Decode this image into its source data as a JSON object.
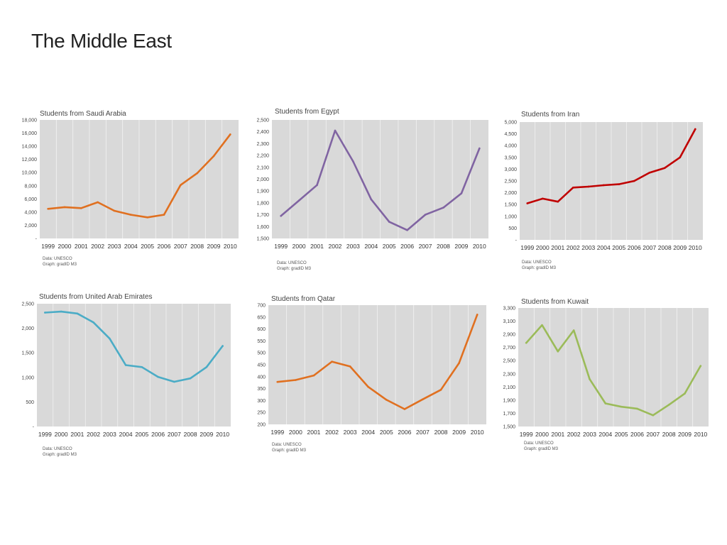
{
  "page": {
    "title": "The Middle East"
  },
  "chart_data": [
    {
      "id": "saudi",
      "type": "line",
      "title": "Students from Saudi Arabia",
      "color": "#E07020",
      "categories": [
        "1999",
        "2000",
        "2001",
        "2002",
        "2003",
        "2004",
        "2005",
        "2006",
        "2007",
        "2008",
        "2009",
        "2010"
      ],
      "values": [
        4500,
        4750,
        4600,
        5500,
        4200,
        3600,
        3200,
        3600,
        8100,
        9900,
        12500,
        15800
      ],
      "ylim": [
        0,
        18000
      ],
      "yticks": [
        0,
        2000,
        4000,
        6000,
        8000,
        10000,
        12000,
        14000,
        16000,
        18000
      ],
      "ytick_labels": [
        "-",
        "2,000",
        "4,000",
        "6,000",
        "8,000",
        "10,000",
        "12,000",
        "14,000",
        "16,000",
        "18,000"
      ],
      "source": "Data: UNESCO",
      "graph_credit": "Graph: gradID M3"
    },
    {
      "id": "egypt",
      "type": "line",
      "title": "Students from Egypt",
      "color": "#8064A2",
      "categories": [
        "1999",
        "2000",
        "2001",
        "2002",
        "2003",
        "2004",
        "2005",
        "2006",
        "2007",
        "2008",
        "2009",
        "2010"
      ],
      "values": [
        1690,
        1820,
        1950,
        2410,
        2150,
        1830,
        1640,
        1570,
        1700,
        1760,
        1880,
        2260
      ],
      "ylim": [
        1500,
        2500
      ],
      "yticks": [
        1500,
        1600,
        1700,
        1800,
        1900,
        2000,
        2100,
        2200,
        2300,
        2400,
        2500
      ],
      "ytick_labels": [
        "1,500",
        "1,600",
        "1,700",
        "1,800",
        "1,900",
        "2,000",
        "2,100",
        "2,200",
        "2,300",
        "2,400",
        "2,500"
      ],
      "source": "Data: UNESCO",
      "graph_credit": "Graph: gradID M3"
    },
    {
      "id": "iran",
      "type": "line",
      "title": "Students from Iran",
      "color": "#C00000",
      "categories": [
        "1999",
        "2000",
        "2001",
        "2002",
        "2003",
        "2004",
        "2005",
        "2006",
        "2007",
        "2008",
        "2009",
        "2010"
      ],
      "values": [
        1550,
        1750,
        1620,
        2220,
        2260,
        2320,
        2360,
        2500,
        2850,
        3050,
        3500,
        4700
      ],
      "ylim": [
        0,
        5000
      ],
      "yticks": [
        0,
        500,
        1000,
        1500,
        2000,
        2500,
        3000,
        3500,
        4000,
        4500,
        5000
      ],
      "ytick_labels": [
        "-",
        "500",
        "1,000",
        "1,500",
        "2,000",
        "2,500",
        "3,000",
        "3,500",
        "4,000",
        "4,500",
        "5,000"
      ],
      "source": "Data: UNESCO",
      "graph_credit": "Graph: gradID M3"
    },
    {
      "id": "uae",
      "type": "line",
      "title": "Students from United Arab Emirates",
      "color": "#4BACC6",
      "categories": [
        "1999",
        "2000",
        "2001",
        "2002",
        "2003",
        "2004",
        "2005",
        "2006",
        "2007",
        "2008",
        "2009",
        "2010"
      ],
      "values": [
        2320,
        2340,
        2300,
        2120,
        1790,
        1250,
        1210,
        1010,
        910,
        980,
        1210,
        1640
      ],
      "ylim": [
        0,
        2500
      ],
      "yticks": [
        0,
        500,
        1000,
        1500,
        2000,
        2500
      ],
      "ytick_labels": [
        "-",
        "500",
        "1,000",
        "1,500",
        "2,000",
        "2,500"
      ],
      "source": "Data: UNESCO",
      "graph_credit": "Graph: gradID M3"
    },
    {
      "id": "qatar",
      "type": "line",
      "title": "Students from Qatar",
      "color": "#E07020",
      "categories": [
        "1999",
        "2000",
        "2001",
        "2002",
        "2003",
        "2004",
        "2005",
        "2006",
        "2007",
        "2008",
        "2009",
        "2010"
      ],
      "values": [
        378,
        386,
        405,
        463,
        443,
        357,
        303,
        264,
        305,
        345,
        457,
        660
      ],
      "ylim": [
        200,
        700
      ],
      "yticks": [
        200,
        250,
        300,
        350,
        400,
        450,
        500,
        550,
        600,
        650,
        700
      ],
      "ytick_labels": [
        "200",
        "250",
        "300",
        "350",
        "400",
        "450",
        "500",
        "550",
        "600",
        "650",
        "700"
      ],
      "source": "Data: UNESCO",
      "graph_credit": "Graph: gradID M3"
    },
    {
      "id": "kuwait",
      "type": "line",
      "title": "Students from Kuwait",
      "color": "#9BBB59",
      "categories": [
        "1999",
        "2000",
        "2001",
        "2002",
        "2003",
        "2004",
        "2005",
        "2006",
        "2007",
        "2008",
        "2009",
        "2010"
      ],
      "values": [
        2770,
        3040,
        2640,
        2960,
        2220,
        1850,
        1800,
        1770,
        1670,
        1830,
        2000,
        2420
      ],
      "ylim": [
        1500,
        3300
      ],
      "yticks": [
        1500,
        1700,
        1900,
        2100,
        2300,
        2500,
        2700,
        2900,
        3100,
        3300
      ],
      "ytick_labels": [
        "1,500",
        "1,700",
        "1,900",
        "2,100",
        "2,300",
        "2,500",
        "2,700",
        "2,900",
        "3,100",
        "3,300"
      ],
      "source": "Data: UNESCO",
      "graph_credit": "Graph: gradID M3"
    }
  ]
}
